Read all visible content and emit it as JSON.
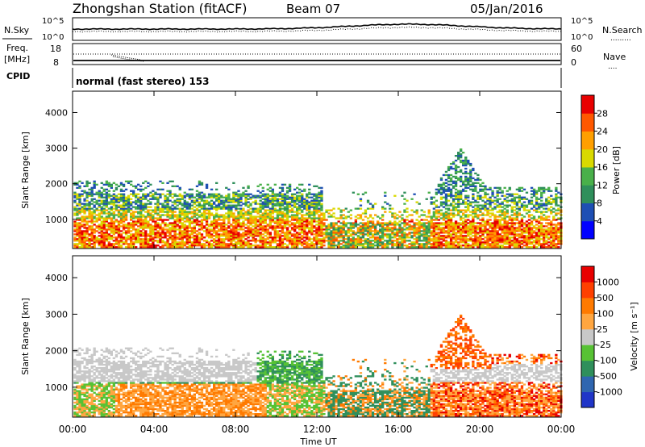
{
  "header": {
    "station": "Zhongshan Station (fitACF)",
    "beam": "Beam 07",
    "date": "05/Jan/2016"
  },
  "noise_panel": {
    "left_label": "N.Sky",
    "right_label": "N.Search",
    "right_style": ".........",
    "left_ticks": [
      "10^5",
      "10^0"
    ],
    "right_ticks": [
      "10^5",
      "10^0"
    ]
  },
  "freq_panel": {
    "left_label_1": "Freq.",
    "left_label_2": "[MHz]",
    "right_label": "Nave",
    "right_style": "....",
    "left_ticks": [
      "18",
      "8"
    ],
    "right_ticks": [
      "60",
      "0"
    ]
  },
  "cpid_panel": {
    "label": "CPID",
    "text": "normal (fast stereo) 153"
  },
  "xaxis": {
    "label": "Time UT",
    "ticks": [
      "00:00",
      "04:00",
      "08:00",
      "12:00",
      "16:00",
      "20:00",
      "00:00"
    ]
  },
  "chart_data": [
    {
      "type": "heatmap",
      "name": "power",
      "ylabel": "Slant Range [km]",
      "ylim": [
        180,
        4600
      ],
      "yticks": [
        1000,
        2000,
        3000,
        4000
      ],
      "xlim_hours": [
        0,
        24
      ],
      "colorbar": {
        "label": "Power [dB]",
        "ticks": [
          "4",
          "8",
          "12",
          "16",
          "20",
          "24",
          "28"
        ],
        "colors": [
          "#0000ff",
          "#1e4fb4",
          "#2f8f5b",
          "#49b04a",
          "#d9d900",
          "#ff9f00",
          "#ff5800",
          "#e80000"
        ]
      }
    },
    {
      "type": "heatmap",
      "name": "velocity",
      "ylabel": "Slant Range [km]",
      "ylim": [
        180,
        4600
      ],
      "yticks": [
        1000,
        2000,
        3000,
        4000
      ],
      "xlim_hours": [
        0,
        24
      ],
      "colorbar": {
        "label": "Velocity [m s⁻¹]",
        "ticks": [
          "1000",
          "500",
          "100",
          "25",
          "-25",
          "-100",
          "-500",
          "-1000"
        ],
        "colors": [
          "#2035c8",
          "#2f66b0",
          "#2f8f5b",
          "#57c234",
          "#c8c8c8",
          "#ffa640",
          "#ff7a00",
          "#ff4000",
          "#e80000"
        ]
      }
    }
  ]
}
